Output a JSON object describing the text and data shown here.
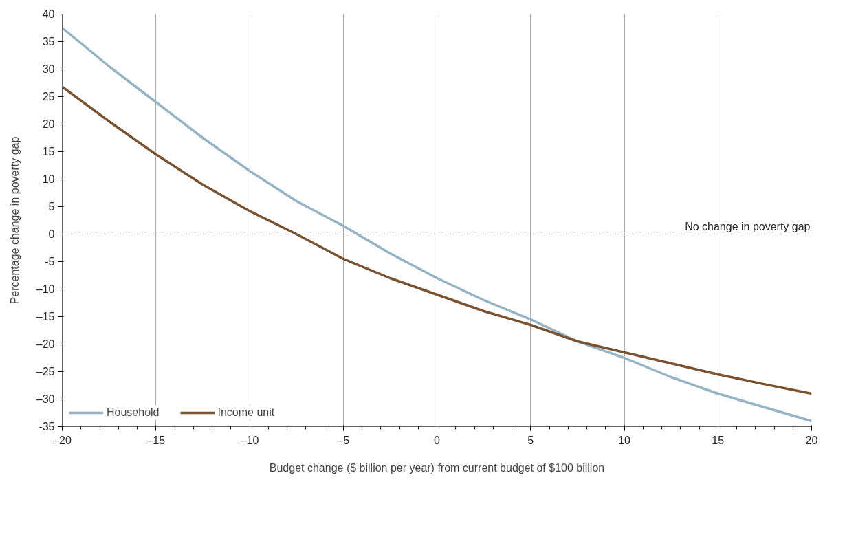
{
  "chart_data": {
    "type": "line",
    "xlabel": "Budget change ($ billion per year) from current budget of $100 billion",
    "ylabel": "Percentage change in poverty gap",
    "x": [
      -20,
      -17.5,
      -15,
      -12.5,
      -10,
      -7.5,
      -5,
      -2.5,
      0,
      2.5,
      5,
      7.5,
      10,
      12.5,
      15,
      17.5,
      20
    ],
    "series": [
      {
        "name": "Household",
        "color": "#94b4c6",
        "values": [
          37.5,
          30.5,
          24,
          17.5,
          11.5,
          6,
          1.5,
          -3.5,
          -8,
          -12,
          -15.5,
          -19.5,
          -22.5,
          -26,
          -29,
          -31.5,
          -34
        ]
      },
      {
        "name": "Income unit",
        "color": "#7a5230",
        "values": [
          26.8,
          20.5,
          14.5,
          9,
          4.2,
          0,
          -4.5,
          -8,
          -11,
          -14,
          -16.5,
          -19.5,
          -21.5,
          -23.5,
          -25.5,
          -27.3,
          -29
        ]
      }
    ],
    "xlim": [
      -20,
      20
    ],
    "ylim": [
      -35,
      40
    ],
    "xticks": [
      {
        "value": -20,
        "label": "–20"
      },
      {
        "value": -15,
        "label": "–15"
      },
      {
        "value": -10,
        "label": "–10"
      },
      {
        "value": -5,
        "label": "–5"
      },
      0,
      5,
      10,
      15,
      20
    ],
    "yticks": [
      {
        "value": -35,
        "label": "-35"
      },
      {
        "value": -30,
        "label": "–30"
      },
      {
        "value": -25,
        "label": "–25"
      },
      {
        "value": -20,
        "label": "–20"
      },
      {
        "value": -15,
        "label": "–15"
      },
      {
        "value": -10,
        "label": "–10"
      },
      {
        "value": -5,
        "label": "-5"
      },
      0,
      5,
      10,
      15,
      20,
      25,
      30,
      35,
      40
    ],
    "ref_lines": [
      {
        "axis": "y",
        "value": 0,
        "label": "No change in poverty gap",
        "color": "#333333",
        "line_style": "dashed"
      }
    ],
    "grid": "x",
    "legend": "bottom left",
    "marker": "none",
    "line_style": "solid"
  }
}
